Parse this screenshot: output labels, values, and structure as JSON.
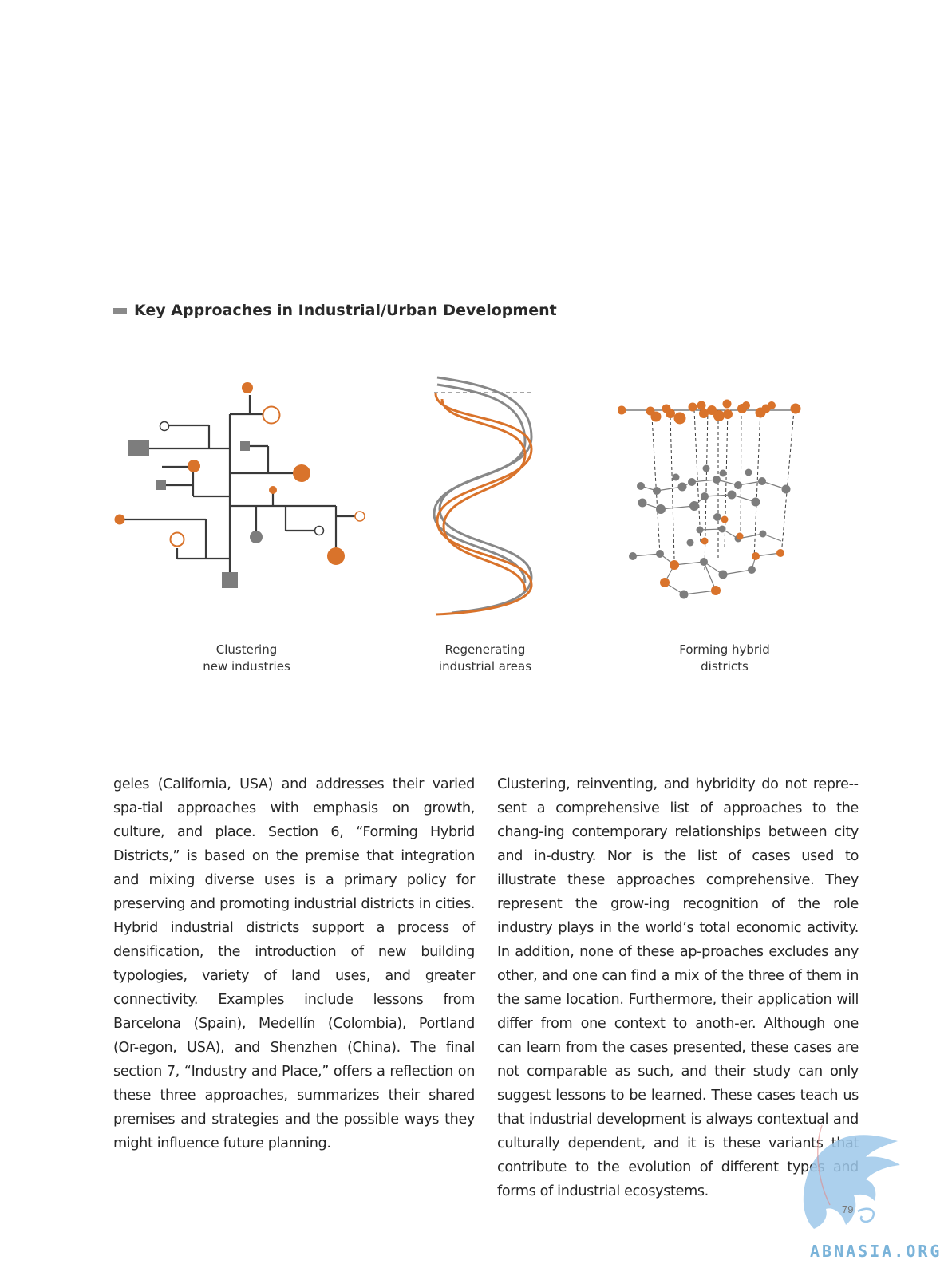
{
  "heading": {
    "title": "Key Approaches in Industrial/Urban Development"
  },
  "figures": [
    {
      "caption_line1": "Clustering",
      "caption_line2": "new industries",
      "icon": "tree-network-icon"
    },
    {
      "caption_line1": "Regenerating",
      "caption_line2": "industrial areas",
      "icon": "double-helix-icon"
    },
    {
      "caption_line1": "Forming hybrid",
      "caption_line2": "districts",
      "icon": "layered-network-icon"
    }
  ],
  "colors": {
    "accent_orange": "#d9732b",
    "gray": "#7d7d7d",
    "dark_line": "#3a3a3a"
  },
  "body": {
    "left_column": "geles (California, USA) and addresses their varied spa-­tial approaches with emphasis on growth, culture, and place. Section 6, “Forming Hybrid Districts,” is based on the premise that integration and mixing diverse uses is a primary policy for preserving and promoting industrial districts in cities. Hybrid industrial districts support a process of densification, the introduction of new building typologies, variety of land uses, and greater connectivity. Examples include lessons from Barcelona (Spain), Medellín (Colombia), Portland (Or-­egon, USA), and Shenzhen (China). The final section 7, “Industry and Place,” offers a reflection on these three approaches, summarizes their shared premises and strategies and the possible ways they might influence future planning.",
    "right_column": "Clustering, reinventing, and hybridity do not repre-­sent a comprehensive list of approaches to the chang-­ing contemporary relationships between city and in-­dustry. Nor is the list of cases used to illustrate these approaches comprehensive. They represent the grow-­ing recognition of the role industry plays in the world’s total economic activity. In addition, none of these ap-­proaches excludes any other, and one can find a mix of the three of them in the same location. Furthermore, their application will differ from one context to anoth-­er. Although one can learn from the cases presented, these cases are not comparable as such, and their study can only suggest lessons to be learned. These cases teach us that industrial development is always contextual and culturally dependent, and it is these variants that contribute to the evolution of different types and forms of industrial ecosystems."
  },
  "page_number": "79",
  "watermark": {
    "text": "ABNASIA.ORG",
    "icon": "dragon-logo-icon"
  }
}
